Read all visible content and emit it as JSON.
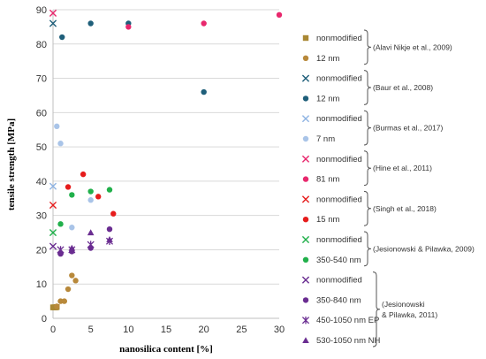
{
  "chart_data": {
    "type": "scatter",
    "xlabel": "nanosilica content [%]",
    "ylabel": "tensile strength [MPa]",
    "xlim": [
      0,
      30
    ],
    "ylim": [
      0,
      90
    ],
    "x_ticks": [
      "0",
      "5",
      "10",
      "15",
      "20",
      "25",
      "30"
    ],
    "y_ticks": [
      "0",
      "10",
      "20",
      "30",
      "40",
      "50",
      "60",
      "70",
      "80",
      "90"
    ],
    "grid": "horizontal",
    "legend_position": "right",
    "series": [
      {
        "name": "nonmodified",
        "marker": "square",
        "color": "#a98834",
        "points": [
          [
            0,
            3.2
          ],
          [
            0.1,
            3.2
          ],
          [
            0.2,
            3.2
          ],
          [
            0.3,
            3.2
          ],
          [
            0.4,
            3.2
          ],
          [
            0.5,
            3.3
          ]
        ]
      },
      {
        "name": "12 nm",
        "marker": "circle",
        "color": "#b8893b",
        "points": [
          [
            0.5,
            3.5
          ],
          [
            1,
            5
          ],
          [
            1.5,
            5
          ],
          [
            2,
            8.5
          ],
          [
            2.5,
            12.5
          ],
          [
            3,
            11
          ]
        ]
      },
      {
        "name": "nonmodified",
        "marker": "x",
        "color": "#1f5f7a",
        "points": [
          [
            0,
            86
          ]
        ]
      },
      {
        "name": "12 nm",
        "marker": "circle",
        "color": "#1f5f7a",
        "points": [
          [
            1.2,
            82
          ],
          [
            5,
            86
          ],
          [
            10,
            86
          ],
          [
            20,
            66
          ]
        ]
      },
      {
        "name": "nonmodified",
        "marker": "x",
        "color": "#8fb4e3",
        "points": [
          [
            0,
            38.5
          ]
        ]
      },
      {
        "name": "7 nm",
        "marker": "circle",
        "color": "#a9c4e8",
        "points": [
          [
            0.5,
            56
          ],
          [
            1,
            51
          ],
          [
            2.5,
            26.5
          ],
          [
            5,
            34.5
          ]
        ]
      },
      {
        "name": "nonmodified",
        "marker": "x",
        "color": "#e8286d",
        "points": [
          [
            0,
            89
          ]
        ]
      },
      {
        "name": "81 nm",
        "marker": "circle",
        "color": "#e8286d",
        "points": [
          [
            10,
            85
          ],
          [
            20,
            86
          ],
          [
            30,
            88.5
          ]
        ]
      },
      {
        "name": "nonmodified",
        "marker": "x",
        "color": "#e61c1c",
        "points": [
          [
            0,
            33
          ]
        ]
      },
      {
        "name": "15 nm",
        "marker": "circle",
        "color": "#e61c1c",
        "points": [
          [
            2,
            38.3
          ],
          [
            4,
            42
          ],
          [
            6,
            35.5
          ],
          [
            8,
            30.5
          ]
        ]
      },
      {
        "name": "nonmodified",
        "marker": "x",
        "color": "#21b04b",
        "points": [
          [
            0,
            25
          ]
        ]
      },
      {
        "name": "350-540 nm",
        "marker": "circle",
        "color": "#21b04b",
        "points": [
          [
            1,
            27.5
          ],
          [
            2.5,
            36
          ],
          [
            5,
            37
          ],
          [
            7.5,
            37.5
          ]
        ]
      },
      {
        "name": "nonmodified",
        "marker": "x",
        "color": "#6a2d91",
        "points": [
          [
            0,
            21
          ]
        ]
      },
      {
        "name": "350-840 nm",
        "marker": "circle",
        "color": "#6a2d91",
        "points": [
          [
            1,
            18.8
          ],
          [
            2.5,
            19.5
          ],
          [
            5,
            20.5
          ],
          [
            7.5,
            26
          ]
        ]
      },
      {
        "name": "450-1050 nm EP",
        "marker": "star",
        "color": "#6a2d91",
        "points": [
          [
            1,
            20
          ],
          [
            2.5,
            20
          ],
          [
            5,
            21.5
          ],
          [
            7.5,
            22.5
          ]
        ]
      },
      {
        "name": "530-1050 nm NH",
        "marker": "triangle",
        "color": "#6a2d91",
        "points": [
          [
            1,
            19.5
          ],
          [
            2.5,
            20.5
          ],
          [
            5,
            25
          ],
          [
            7.5,
            23
          ]
        ]
      }
    ],
    "references": [
      {
        "text": "(Alavi Nikje et al., 2009)",
        "series": [
          0,
          1
        ]
      },
      {
        "text": "(Baur et al., 2008)",
        "series": [
          2,
          3
        ]
      },
      {
        "text": "(Burmas et al., 2017)",
        "series": [
          4,
          5
        ]
      },
      {
        "text": "(Hine et al., 2011)",
        "series": [
          6,
          7
        ]
      },
      {
        "text": "(Singh et al., 2018)",
        "series": [
          8,
          9
        ]
      },
      {
        "text": "(Jesionowski & Pilawka, 2009)",
        "series": [
          10,
          11
        ]
      },
      {
        "text": [
          "(Jesionowski",
          "& Pilawka, 2011)"
        ],
        "series": [
          12,
          13,
          14,
          15
        ]
      }
    ]
  }
}
